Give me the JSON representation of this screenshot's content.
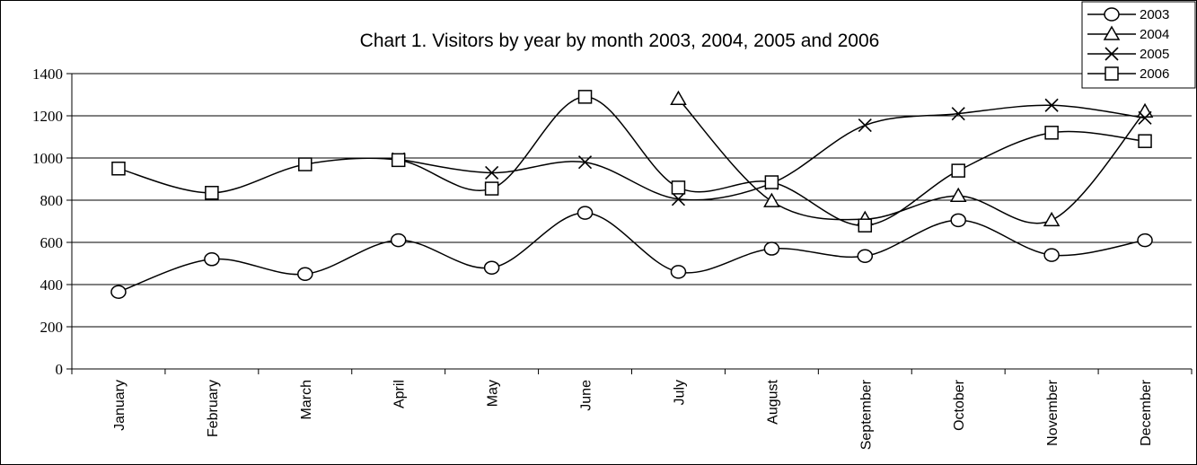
{
  "chart_data": {
    "type": "line",
    "title": "Chart 1. Visitors by year by month 2003, 2004, 2005 and 2006",
    "xlabel": "",
    "ylabel": "",
    "categories": [
      "January",
      "February",
      "March",
      "April",
      "May",
      "June",
      "July",
      "August",
      "September",
      "October",
      "November",
      "December"
    ],
    "ylim": [
      0,
      1400
    ],
    "yticks": [
      0,
      200,
      400,
      600,
      800,
      1000,
      1200,
      1400
    ],
    "grid": true,
    "legend_position": "top-right",
    "smooth": true,
    "series": [
      {
        "name": "2003",
        "marker": "circle",
        "values": [
          365,
          520,
          450,
          610,
          480,
          740,
          460,
          570,
          535,
          705,
          540,
          610
        ]
      },
      {
        "name": "2004",
        "marker": "triangle",
        "values": [
          null,
          null,
          null,
          null,
          null,
          null,
          1280,
          795,
          710,
          820,
          705,
          1220
        ]
      },
      {
        "name": "2005",
        "marker": "x",
        "values": [
          null,
          null,
          null,
          995,
          930,
          980,
          805,
          880,
          1155,
          1210,
          1250,
          1190
        ]
      },
      {
        "name": "2006",
        "marker": "square",
        "values": [
          950,
          835,
          970,
          990,
          855,
          1290,
          860,
          885,
          680,
          940,
          1120,
          1080
        ]
      }
    ]
  }
}
